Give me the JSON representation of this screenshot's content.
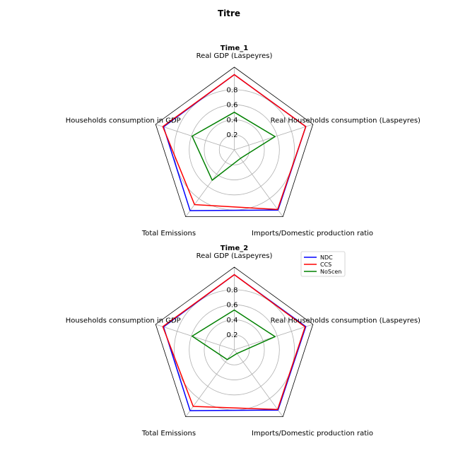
{
  "figure": {
    "title": "Titre"
  },
  "chart_data": [
    {
      "type": "radar",
      "title": "Time_1",
      "axes": [
        "Real GDP (Laspeyres)",
        "Real Households consumption (Laspeyres)",
        "Imports/Domestic production ratio",
        "Total Emissions",
        "Households consumption in GDP"
      ],
      "rlim": [
        0,
        1.1
      ],
      "rticks": [
        0.2,
        0.4,
        0.6,
        0.8
      ],
      "grid": true,
      "series": [
        {
          "name": "NDC",
          "color": "#0000ff",
          "values": [
            1.0,
            1.0,
            0.99,
            1.0,
            0.99
          ]
        },
        {
          "name": "CCS",
          "color": "#ff0000",
          "values": [
            1.0,
            1.0,
            0.98,
            0.9,
            1.0
          ]
        },
        {
          "name": "NoScen",
          "color": "#008000",
          "values": [
            0.5,
            0.57,
            0.14,
            0.5,
            0.59
          ]
        }
      ]
    },
    {
      "type": "radar",
      "title": "Time_2",
      "axes": [
        "Real GDP (Laspeyres)",
        "Real Households consumption (Laspeyres)",
        "Imports/Domestic production ratio",
        "Total Emissions",
        "Households consumption in GDP"
      ],
      "rlim": [
        0,
        1.1
      ],
      "rticks": [
        0.2,
        0.4,
        0.6,
        0.8
      ],
      "grid": true,
      "series": [
        {
          "name": "NDC",
          "color": "#0000ff",
          "values": [
            1.0,
            1.0,
            0.99,
            1.0,
            0.99
          ]
        },
        {
          "name": "CCS",
          "color": "#ff0000",
          "values": [
            1.0,
            0.99,
            0.98,
            0.93,
            1.0
          ]
        },
        {
          "name": "NoScen",
          "color": "#008000",
          "values": [
            0.53,
            0.57,
            0.06,
            0.16,
            0.59
          ]
        }
      ]
    }
  ],
  "legend": {
    "placement": "top-right",
    "entries": [
      "NDC",
      "CCS",
      "NoScen"
    ]
  }
}
